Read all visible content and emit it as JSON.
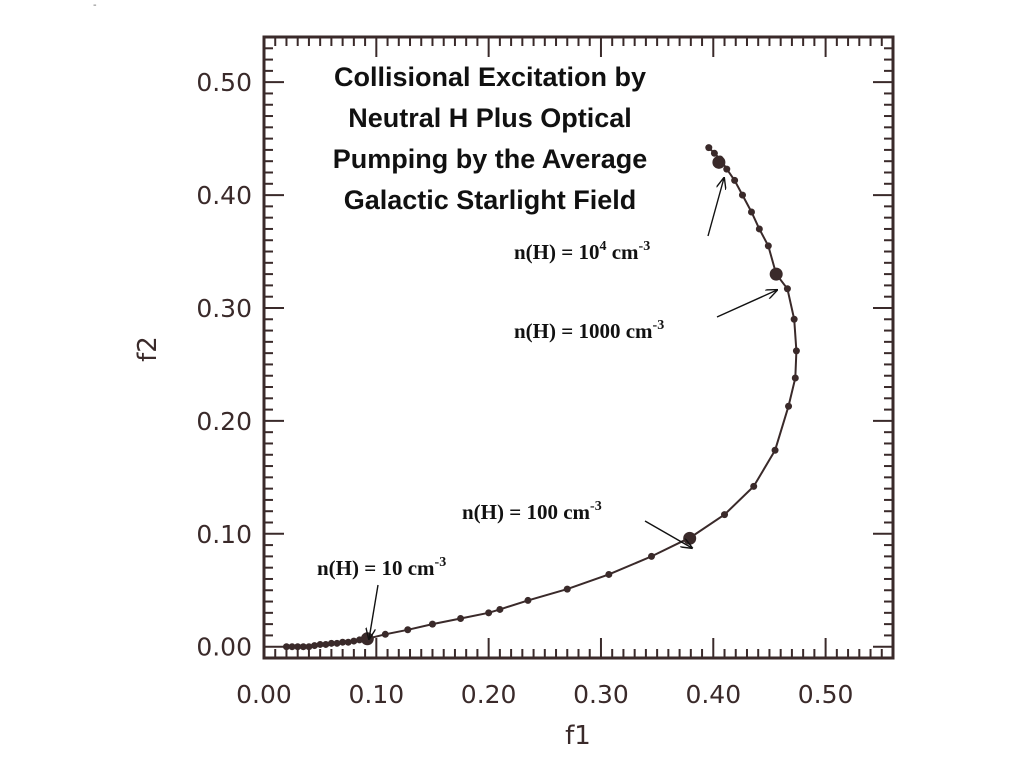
{
  "corner_mark": "-",
  "chart_data": {
    "type": "line",
    "title_lines": [
      "Collisional Excitation by",
      "Neutral H Plus Optical",
      "Pumping by the Average",
      "Galactic Starlight Field"
    ],
    "xlabel": "f1",
    "ylabel": "f2",
    "xlim": [
      0.0,
      0.56
    ],
    "ylim": [
      -0.01,
      0.54
    ],
    "xticks": [
      0.0,
      0.1,
      0.2,
      0.3,
      0.4,
      0.5
    ],
    "xtick_labels": [
      "0.00",
      "0.10",
      "0.20",
      "0.30",
      "0.40",
      "0.50"
    ],
    "yticks": [
      0.0,
      0.1,
      0.2,
      0.3,
      0.4,
      0.5
    ],
    "ytick_labels": [
      "0.00",
      "0.10",
      "0.20",
      "0.30",
      "0.40",
      "0.50"
    ],
    "grid": false,
    "colors": {
      "curve": "#3a2a2a",
      "frame": "#3a2a2a",
      "text": "#111111"
    },
    "series": [
      {
        "x": [
          0.02,
          0.025,
          0.03,
          0.035,
          0.04,
          0.045,
          0.05,
          0.055,
          0.06,
          0.065,
          0.07,
          0.075,
          0.08,
          0.085,
          0.092,
          0.108,
          0.128,
          0.15,
          0.175,
          0.2,
          0.21,
          0.235,
          0.27,
          0.307,
          0.345,
          0.38,
          0.41,
          0.436,
          0.455,
          0.467,
          0.473,
          0.474,
          0.472,
          0.466,
          0.456,
          0.449,
          0.441,
          0.434,
          0.426,
          0.419,
          0.412,
          0.406,
          0.401,
          0.396
        ],
        "y": [
          0.0,
          0.0,
          0.0,
          0.0,
          0.0,
          0.001,
          0.002,
          0.002,
          0.003,
          0.003,
          0.004,
          0.004,
          0.005,
          0.006,
          0.007,
          0.011,
          0.015,
          0.02,
          0.025,
          0.03,
          0.033,
          0.041,
          0.051,
          0.064,
          0.08,
          0.097,
          0.117,
          0.142,
          0.174,
          0.213,
          0.238,
          0.262,
          0.29,
          0.317,
          0.33,
          0.355,
          0.37,
          0.385,
          0.4,
          0.413,
          0.423,
          0.432,
          0.437,
          0.442
        ]
      }
    ],
    "highlight_points": [
      {
        "x": 0.092,
        "y": 0.007,
        "label": "n(H) = 10 cm",
        "sup": "-3"
      },
      {
        "x": 0.379,
        "y": 0.096,
        "label": "n(H) = 100 cm",
        "sup": "-3"
      },
      {
        "x": 0.456,
        "y": 0.33,
        "label": "n(H) = 1000 cm",
        "sup": "-3"
      },
      {
        "x": 0.405,
        "y": 0.429,
        "label": "n(H) = 10",
        "sup_mid": "4",
        "label_tail": " cm",
        "sup": "-3"
      }
    ]
  }
}
